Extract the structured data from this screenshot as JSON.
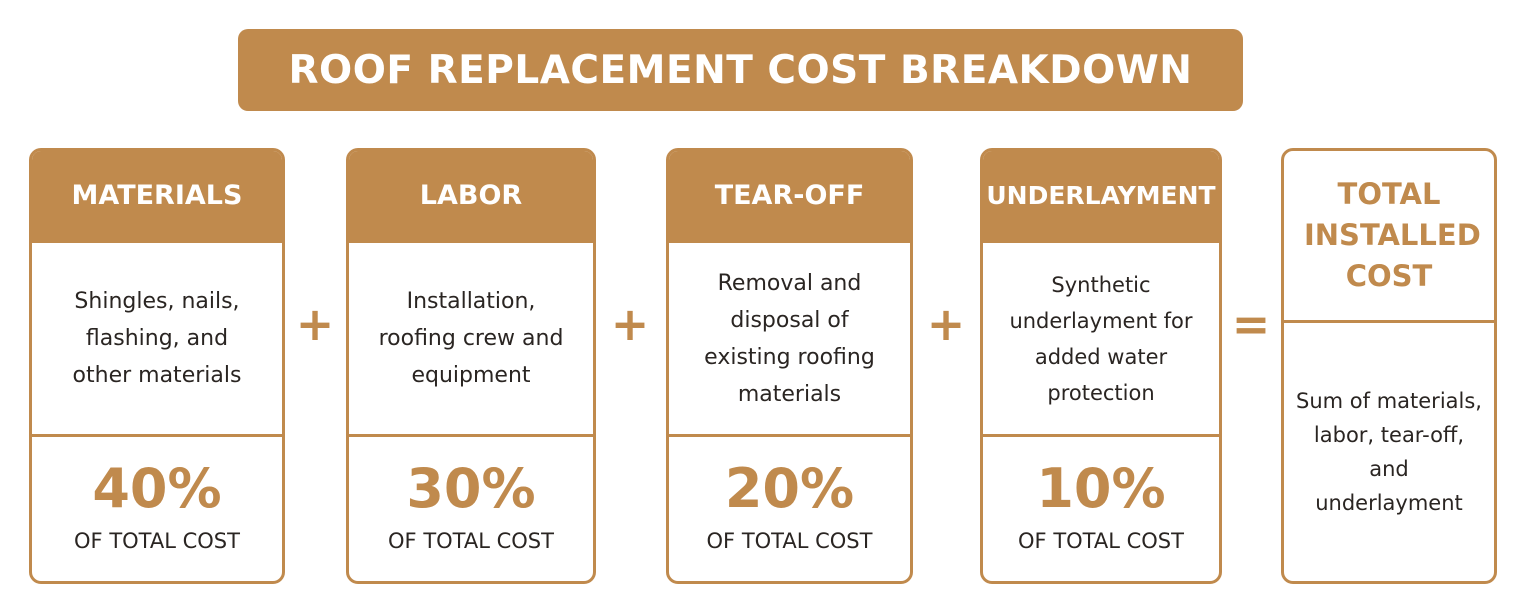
{
  "title": "ROOF REPLACEMENT COST BREAKDOWN",
  "colors": {
    "accent": "#c08a4d",
    "text": "#2a2522",
    "background": "#ffffff"
  },
  "components": [
    {
      "title": "MATERIALS",
      "description": "Shingles, nails, flashing, and other materials",
      "percent": "40%",
      "percent_value": 40,
      "percent_label": "OF TOTAL COST"
    },
    {
      "title": "LABOR",
      "description": "Installation, roofing crew and equipment",
      "percent": "30%",
      "percent_value": 30,
      "percent_label": "OF TOTAL COST"
    },
    {
      "title": "TEAR-OFF",
      "description": "Removal and disposal of existing roofing materials",
      "percent": "20%",
      "percent_value": 20,
      "percent_label": "OF TOTAL COST"
    },
    {
      "title": "UNDERLAYMENT",
      "description": "Synthetic underlayment for added water protection",
      "percent": "10%",
      "percent_value": 10,
      "percent_label": "OF TOTAL COST"
    }
  ],
  "operators": [
    "+",
    "+",
    "+",
    "="
  ],
  "total": {
    "title": "TOTAL INSTALLED COST",
    "description": "Sum of materials, labor, tear-off, and underlayment"
  }
}
